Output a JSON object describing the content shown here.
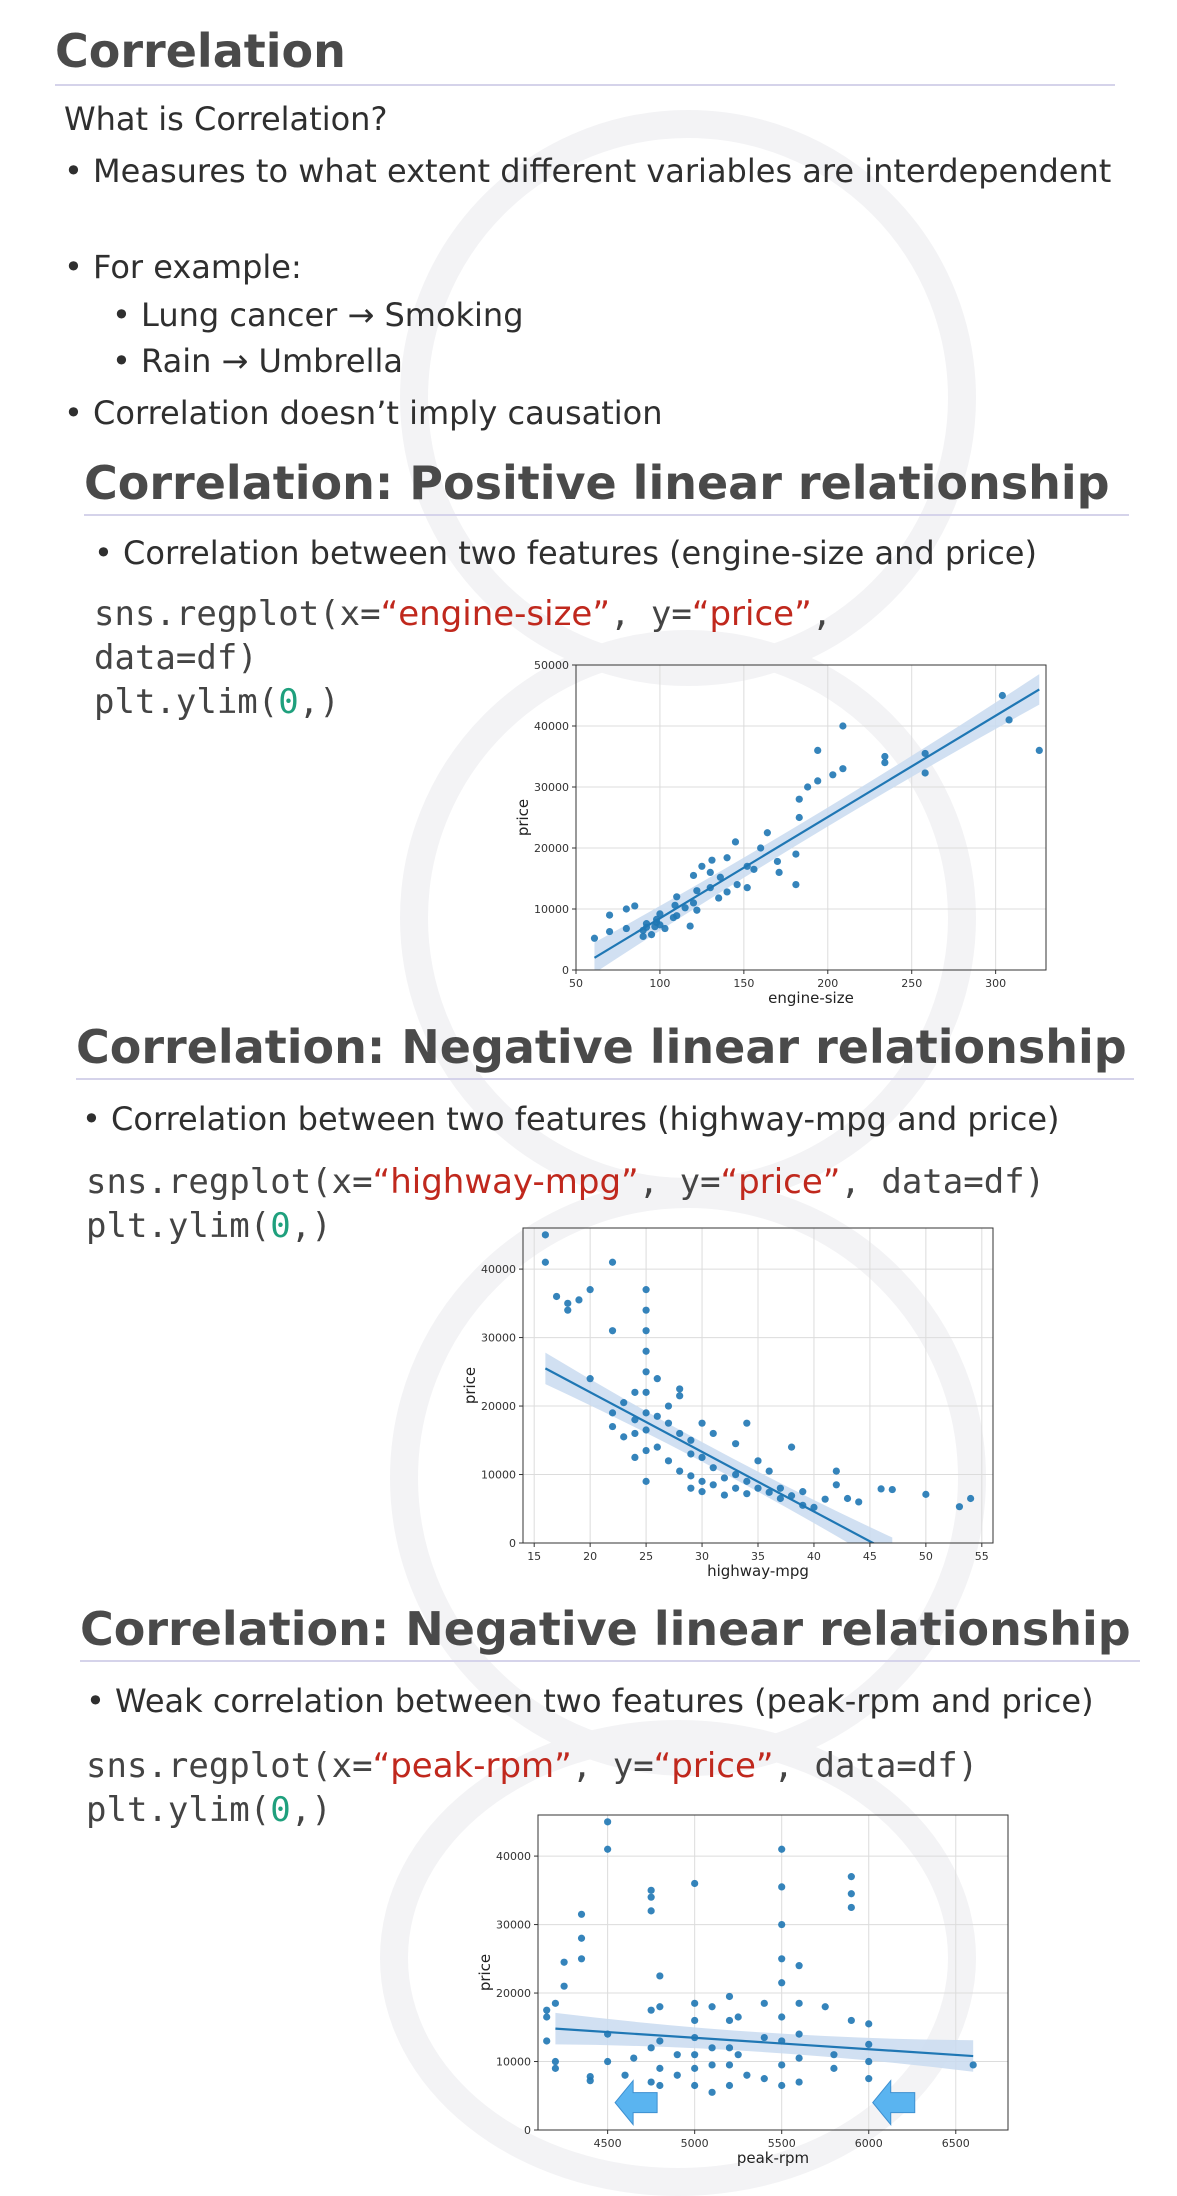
{
  "section1": {
    "title": "Correlation",
    "question": "What is Correlation?",
    "bullet1": "• Measures to what extent different variables are interdependent",
    "bullet2": "• For example:",
    "sub1": "• Lung cancer → Smoking",
    "sub2": "• Rain → Umbrella",
    "bullet3": "• Correlation doesn’t imply causation"
  },
  "section2": {
    "title": "Correlation: Positive linear relationship",
    "bullet": "• Correlation between two features (engine-size and price)",
    "code": {
      "p1": "sns.regplot(x=",
      "xval": "“engine-size”",
      "p2": ", y=",
      "yval": "“price”",
      "p3": ",",
      "line2": "data=df)",
      "l3a": "plt.ylim(",
      "l3n": "0",
      "l3b": ",)"
    }
  },
  "section3": {
    "title": "Correlation: Negative linear relationship",
    "bullet": "• Correlation between two features (highway-mpg and price)",
    "code": {
      "p1": "sns.regplot(x=",
      "xval": "“highway-mpg”",
      "p2": ", y=",
      "yval": "“price”",
      "p3": ", data=df)",
      "l2a": "plt.ylim(",
      "l2n": "0",
      "l2b": ",)"
    }
  },
  "section4": {
    "title": "Correlation: Negative linear relationship",
    "bullet": "• Weak correlation between two features (peak-rpm and price)",
    "code": {
      "p1": "sns.regplot(x=",
      "xval": "“peak-rpm”",
      "p2": ", y=",
      "yval": "“price”",
      "p3": ", data=df)",
      "l2a": "plt.ylim(",
      "l2n": "0",
      "l2b": ",)"
    }
  },
  "colors": {
    "point": "#1f77b4",
    "band": "#c9daf0",
    "arrow": "#5ab4f0",
    "code_string": "#c0281d",
    "code_number": "#1fa07d"
  },
  "chart_data": [
    {
      "type": "scatter",
      "xlabel": "engine-size",
      "ylabel": "price",
      "xlim": [
        50,
        330
      ],
      "ylim": [
        0,
        50000
      ],
      "xticks": [
        50,
        100,
        150,
        200,
        250,
        300
      ],
      "yticks": [
        0,
        10000,
        20000,
        30000,
        40000,
        50000
      ],
      "grid": true,
      "regression": {
        "x": [
          61,
          326
        ],
        "y": [
          2000,
          46000
        ]
      },
      "points": [
        [
          61,
          5200
        ],
        [
          70,
          6300
        ],
        [
          70,
          9000
        ],
        [
          80,
          6800
        ],
        [
          80,
          10000
        ],
        [
          90,
          5500
        ],
        [
          90,
          6500
        ],
        [
          92,
          7000
        ],
        [
          92,
          7600
        ],
        [
          95,
          5800
        ],
        [
          97,
          7100
        ],
        [
          98,
          7800
        ],
        [
          98,
          8300
        ],
        [
          100,
          7400
        ],
        [
          100,
          9200
        ],
        [
          103,
          6800
        ],
        [
          108,
          8600
        ],
        [
          109,
          10600
        ],
        [
          110,
          8900
        ],
        [
          110,
          12000
        ],
        [
          115,
          10200
        ],
        [
          120,
          11000
        ],
        [
          120,
          15500
        ],
        [
          122,
          9800
        ],
        [
          122,
          13000
        ],
        [
          125,
          17000
        ],
        [
          130,
          13500
        ],
        [
          130,
          16000
        ],
        [
          131,
          18000
        ],
        [
          136,
          15200
        ],
        [
          140,
          12800
        ],
        [
          140,
          18400
        ],
        [
          146,
          14000
        ],
        [
          152,
          13500
        ],
        [
          152,
          17000
        ],
        [
          156,
          16500
        ],
        [
          160,
          20000
        ],
        [
          164,
          22500
        ],
        [
          171,
          16000
        ],
        [
          181,
          14000
        ],
        [
          181,
          19000
        ],
        [
          183,
          25000
        ],
        [
          183,
          28000
        ],
        [
          194,
          31000
        ],
        [
          194,
          36000
        ],
        [
          203,
          32000
        ],
        [
          209,
          33000
        ],
        [
          209,
          40000
        ],
        [
          234,
          34000
        ],
        [
          234,
          35000
        ],
        [
          258,
          32300
        ],
        [
          258,
          35500
        ],
        [
          304,
          45000
        ],
        [
          308,
          41000
        ],
        [
          326,
          36000
        ],
        [
          85,
          10500
        ],
        [
          118,
          7200
        ],
        [
          135,
          11800
        ],
        [
          145,
          21000
        ],
        [
          170,
          17800
        ],
        [
          188,
          30000
        ]
      ]
    },
    {
      "type": "scatter",
      "xlabel": "highway-mpg",
      "ylabel": "price",
      "xlim": [
        14,
        56
      ],
      "ylim": [
        0,
        46000
      ],
      "xticks": [
        15,
        20,
        25,
        30,
        35,
        40,
        45,
        50,
        55
      ],
      "yticks": [
        0,
        10000,
        20000,
        30000,
        40000
      ],
      "grid": true,
      "regression": {
        "x": [
          16,
          47
        ],
        "y": [
          25500,
          -1500
        ]
      },
      "points": [
        [
          16,
          45000
        ],
        [
          16,
          41000
        ],
        [
          17,
          36000
        ],
        [
          18,
          35000
        ],
        [
          18,
          34000
        ],
        [
          19,
          35500
        ],
        [
          20,
          37000
        ],
        [
          20,
          24000
        ],
        [
          22,
          41000
        ],
        [
          22,
          31000
        ],
        [
          22,
          19000
        ],
        [
          22,
          17000
        ],
        [
          23,
          15500
        ],
        [
          23,
          20500
        ],
        [
          24,
          16000
        ],
        [
          24,
          12500
        ],
        [
          24,
          18000
        ],
        [
          25,
          37000
        ],
        [
          25,
          34000
        ],
        [
          25,
          31000
        ],
        [
          25,
          28000
        ],
        [
          25,
          25000
        ],
        [
          25,
          22000
        ],
        [
          25,
          19000
        ],
        [
          25,
          16500
        ],
        [
          25,
          13500
        ],
        [
          25,
          9000
        ],
        [
          26,
          18500
        ],
        [
          26,
          14000
        ],
        [
          27,
          17500
        ],
        [
          27,
          12000
        ],
        [
          28,
          22500
        ],
        [
          28,
          16000
        ],
        [
          28,
          10500
        ],
        [
          29,
          13000
        ],
        [
          29,
          9800
        ],
        [
          30,
          17500
        ],
        [
          30,
          12500
        ],
        [
          30,
          9000
        ],
        [
          30,
          7500
        ],
        [
          31,
          11000
        ],
        [
          31,
          8500
        ],
        [
          32,
          9500
        ],
        [
          32,
          7000
        ],
        [
          33,
          10000
        ],
        [
          33,
          8000
        ],
        [
          34,
          17500
        ],
        [
          34,
          9000
        ],
        [
          34,
          7200
        ],
        [
          35,
          8000
        ],
        [
          36,
          7400
        ],
        [
          37,
          8000
        ],
        [
          37,
          6500
        ],
        [
          38,
          6900
        ],
        [
          38,
          14000
        ],
        [
          39,
          7500
        ],
        [
          39,
          5500
        ],
        [
          41,
          6400
        ],
        [
          42,
          10500
        ],
        [
          42,
          8500
        ],
        [
          43,
          6500
        ],
        [
          46,
          7900
        ],
        [
          47,
          7800
        ],
        [
          50,
          7100
        ],
        [
          53,
          5300
        ],
        [
          54,
          6500
        ],
        [
          24,
          22000
        ],
        [
          26,
          24000
        ],
        [
          28,
          21500
        ],
        [
          27,
          20000
        ],
        [
          29,
          15000
        ],
        [
          31,
          16000
        ],
        [
          33,
          14500
        ],
        [
          35,
          12000
        ],
        [
          29,
          8000
        ],
        [
          36,
          10500
        ],
        [
          40,
          5200
        ],
        [
          44,
          6000
        ]
      ]
    },
    {
      "type": "scatter",
      "xlabel": "peak-rpm",
      "ylabel": "price",
      "xlim": [
        4100,
        6800
      ],
      "ylim": [
        0,
        46000
      ],
      "xticks": [
        4500,
        5000,
        5500,
        6000,
        6500
      ],
      "yticks": [
        0,
        10000,
        20000,
        30000,
        40000
      ],
      "grid": true,
      "regression": {
        "x": [
          4200,
          6600
        ],
        "y": [
          14800,
          10800
        ]
      },
      "points": [
        [
          4150,
          17500
        ],
        [
          4150,
          16500
        ],
        [
          4150,
          13000
        ],
        [
          4200,
          10000
        ],
        [
          4200,
          9000
        ],
        [
          4200,
          18500
        ],
        [
          4250,
          24500
        ],
        [
          4250,
          21000
        ],
        [
          4350,
          31500
        ],
        [
          4350,
          28000
        ],
        [
          4350,
          25000
        ],
        [
          4400,
          7800
        ],
        [
          4400,
          7200
        ],
        [
          4500,
          45000
        ],
        [
          4500,
          41000
        ],
        [
          4500,
          14000
        ],
        [
          4500,
          10000
        ],
        [
          4600,
          8000
        ],
        [
          4650,
          10500
        ],
        [
          4750,
          35000
        ],
        [
          4750,
          34000
        ],
        [
          4750,
          32000
        ],
        [
          4750,
          17500
        ],
        [
          4750,
          12000
        ],
        [
          4750,
          7000
        ],
        [
          4800,
          22500
        ],
        [
          4800,
          18000
        ],
        [
          4800,
          13000
        ],
        [
          4800,
          9000
        ],
        [
          4800,
          6500
        ],
        [
          4900,
          11000
        ],
        [
          4900,
          8000
        ],
        [
          5000,
          36000
        ],
        [
          5000,
          18500
        ],
        [
          5000,
          16000
        ],
        [
          5000,
          13500
        ],
        [
          5000,
          11000
        ],
        [
          5000,
          9000
        ],
        [
          5000,
          6500
        ],
        [
          5100,
          18000
        ],
        [
          5100,
          12000
        ],
        [
          5100,
          9500
        ],
        [
          5100,
          5500
        ],
        [
          5200,
          19500
        ],
        [
          5200,
          16000
        ],
        [
          5200,
          12000
        ],
        [
          5200,
          9500
        ],
        [
          5200,
          6500
        ],
        [
          5250,
          16500
        ],
        [
          5250,
          11000
        ],
        [
          5300,
          8000
        ],
        [
          5400,
          18500
        ],
        [
          5400,
          13500
        ],
        [
          5400,
          7500
        ],
        [
          5500,
          41000
        ],
        [
          5500,
          35500
        ],
        [
          5500,
          30000
        ],
        [
          5500,
          25000
        ],
        [
          5500,
          21500
        ],
        [
          5500,
          16500
        ],
        [
          5500,
          13000
        ],
        [
          5500,
          9500
        ],
        [
          5500,
          6500
        ],
        [
          5600,
          24000
        ],
        [
          5600,
          18500
        ],
        [
          5600,
          14000
        ],
        [
          5600,
          10500
        ],
        [
          5600,
          7000
        ],
        [
          5750,
          18000
        ],
        [
          5800,
          11000
        ],
        [
          5800,
          9000
        ],
        [
          5900,
          37000
        ],
        [
          5900,
          34500
        ],
        [
          5900,
          32500
        ],
        [
          5900,
          16000
        ],
        [
          6000,
          15500
        ],
        [
          6000,
          12500
        ],
        [
          6000,
          10000
        ],
        [
          6000,
          7500
        ],
        [
          6600,
          9500
        ]
      ]
    }
  ]
}
